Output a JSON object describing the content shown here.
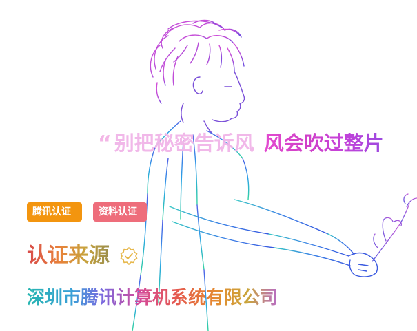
{
  "quote": {
    "open_mark": "“",
    "part1": "别把秘密告诉风",
    "part2": "风会吹过整片"
  },
  "badges": {
    "tencent": "腾讯认证",
    "profile": "资料认证"
  },
  "source": {
    "title": "认证来源",
    "icon": "verified-check-icon"
  },
  "company": "深圳市腾讯计算机系统有限公司",
  "colors": {
    "badge_tencent": "#f3950f",
    "badge_profile": "#ee6d7b",
    "accent_pink": "#e34ad0",
    "quote_light": "#f1b5e8"
  }
}
